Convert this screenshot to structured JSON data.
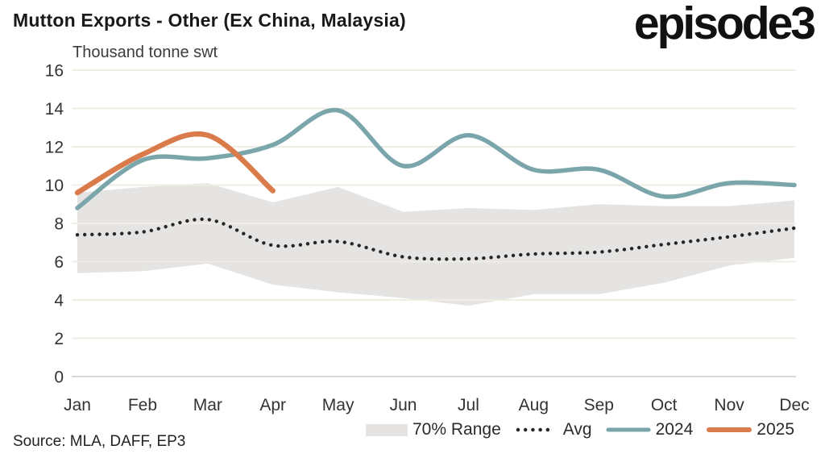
{
  "header": {
    "title": "Mutton Exports - Other (Ex China, Malaysia)",
    "logo_text": "episode3"
  },
  "chart_data": {
    "type": "line",
    "title": "Mutton Exports - Other (Ex China, Malaysia)",
    "ylabel": "Thousand tonne swt",
    "xlabel": "",
    "grid": true,
    "legend_position": "bottom-right",
    "ylim": [
      0,
      16
    ],
    "yticks": [
      0,
      2,
      4,
      6,
      8,
      10,
      12,
      14,
      16
    ],
    "categories": [
      "Jan",
      "Feb",
      "Mar",
      "Apr",
      "May",
      "Jun",
      "Jul",
      "Aug",
      "Sep",
      "Oct",
      "Nov",
      "Dec"
    ],
    "series": [
      {
        "name": "70% Range",
        "type": "band",
        "upper": [
          9.6,
          9.9,
          10.1,
          9.1,
          9.9,
          8.6,
          8.8,
          8.7,
          9.0,
          8.9,
          8.9,
          9.2
        ],
        "lower": [
          5.4,
          5.5,
          5.9,
          4.8,
          4.4,
          4.1,
          3.7,
          4.3,
          4.3,
          4.9,
          5.8,
          6.2
        ]
      },
      {
        "name": "Avg",
        "type": "dotted-line",
        "values": [
          7.4,
          7.55,
          8.2,
          6.85,
          7.05,
          6.25,
          6.15,
          6.4,
          6.5,
          6.9,
          7.3,
          7.75
        ]
      },
      {
        "name": "2024",
        "type": "line",
        "values": [
          8.8,
          11.3,
          11.4,
          12.1,
          13.9,
          11.0,
          12.6,
          10.8,
          10.8,
          9.4,
          10.1,
          10.0
        ]
      },
      {
        "name": "2025",
        "type": "line",
        "values": [
          9.6,
          11.6,
          12.6,
          9.7
        ]
      }
    ]
  },
  "legend": {
    "items": [
      {
        "label": "70% Range",
        "swatch": "band-swatch"
      },
      {
        "label": "Avg",
        "swatch": "dotted-swatch"
      },
      {
        "label": "2024",
        "swatch": "teal-line-swatch"
      },
      {
        "label": "2025",
        "swatch": "orange-line-swatch"
      }
    ]
  },
  "colors": {
    "band": "#E5E4E2",
    "avg": "#262626",
    "series_2024": "#7AA6AB",
    "series_2025": "#DA7B4B",
    "gridline": "#F0EDE4",
    "zero_line": "#D8D8D8",
    "text": "#333333"
  },
  "source": {
    "text": "Source: MLA, DAFF, EP3"
  }
}
